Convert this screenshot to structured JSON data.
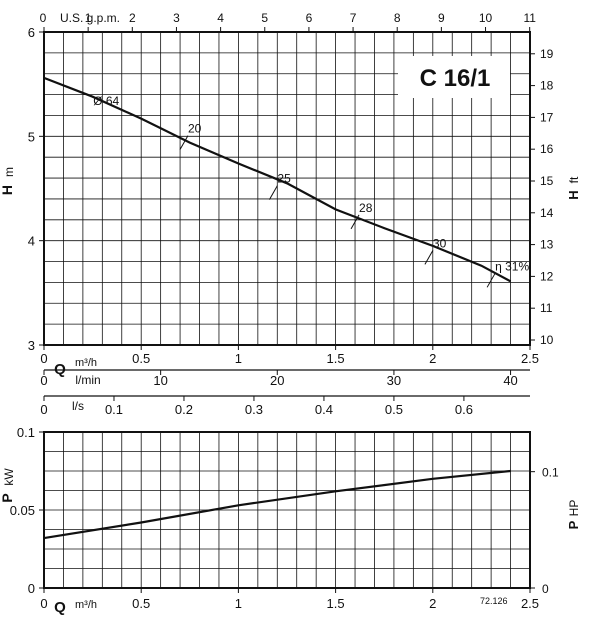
{
  "chart_data": [
    {
      "type": "line",
      "title": "C 16/1",
      "ylabel_left": "H",
      "ylabel_left_unit": "m",
      "ylabel_right": "H",
      "ylabel_right_unit": "ft",
      "x_top_label": "U.S. g.p.m.",
      "x_bottom_label": "Q",
      "x_bottom_unit": "m³/h",
      "xlim": [
        0,
        2.5
      ],
      "ylim": [
        3,
        6
      ],
      "x_ticks": [
        "0",
        "0.5",
        "1",
        "1.5",
        "2",
        "2.5"
      ],
      "y_ticks": [
        "3",
        "4",
        "5",
        "6"
      ],
      "top_ticks": [
        "0",
        "1",
        "2",
        "3",
        "4",
        "5",
        "6",
        "7",
        "8",
        "9",
        "10",
        "11"
      ],
      "right_ticks": [
        "10",
        "11",
        "12",
        "13",
        "14",
        "15",
        "16",
        "17",
        "18",
        "19"
      ],
      "grid": true,
      "series": [
        {
          "name": "Ø 64",
          "x": [
            0,
            0.25,
            0.5,
            0.75,
            1.0,
            1.25,
            1.5,
            1.75,
            2.0,
            2.25,
            2.4
          ],
          "y": [
            5.56,
            5.38,
            5.17,
            4.94,
            4.74,
            4.55,
            4.3,
            4.12,
            3.95,
            3.76,
            3.61
          ]
        }
      ],
      "efficiency_marks": [
        {
          "label": "20",
          "x": 0.72,
          "y": 4.94
        },
        {
          "label": "25",
          "x": 1.18,
          "y": 4.46
        },
        {
          "label": "28",
          "x": 1.6,
          "y": 4.18
        },
        {
          "label": "30",
          "x": 1.98,
          "y": 3.84
        },
        {
          "label": "η 31%",
          "x": 2.3,
          "y": 3.62
        }
      ],
      "curve_label": "Ø 64"
    },
    {
      "type": "axis",
      "flow_axes": [
        {
          "label": "Q",
          "unit": "m³/h",
          "ticks": [
            "0",
            "0.5",
            "1",
            "1.5",
            "2",
            "2.5"
          ]
        },
        {
          "label": "l/min",
          "ticks": [
            "0",
            "10",
            "20",
            "30",
            "40"
          ]
        },
        {
          "label": "l/s",
          "ticks": [
            "0",
            "0.1",
            "0.2",
            "0.3",
            "0.4",
            "0.5",
            "0.6"
          ]
        }
      ]
    },
    {
      "type": "line",
      "ylabel_left": "P",
      "ylabel_left_unit": "kW",
      "ylabel_right": "P",
      "ylabel_right_unit": "HP",
      "x_bottom_label": "Q",
      "x_bottom_unit": "m³/h",
      "xlim": [
        0,
        2.5
      ],
      "ylim": [
        0,
        0.1
      ],
      "x_ticks": [
        "0",
        "0.5",
        "1",
        "1.5",
        "2",
        "2.5"
      ],
      "y_ticks": [
        "0",
        "0.05",
        "0.1"
      ],
      "right_ticks": [
        "0",
        "0.1"
      ],
      "grid": true,
      "series": [
        {
          "name": "",
          "x": [
            0,
            0.5,
            1.0,
            1.5,
            2.0,
            2.4
          ],
          "y": [
            0.032,
            0.042,
            0.053,
            0.062,
            0.07,
            0.075
          ]
        }
      ]
    }
  ],
  "footer": {
    "code": "72.126"
  }
}
